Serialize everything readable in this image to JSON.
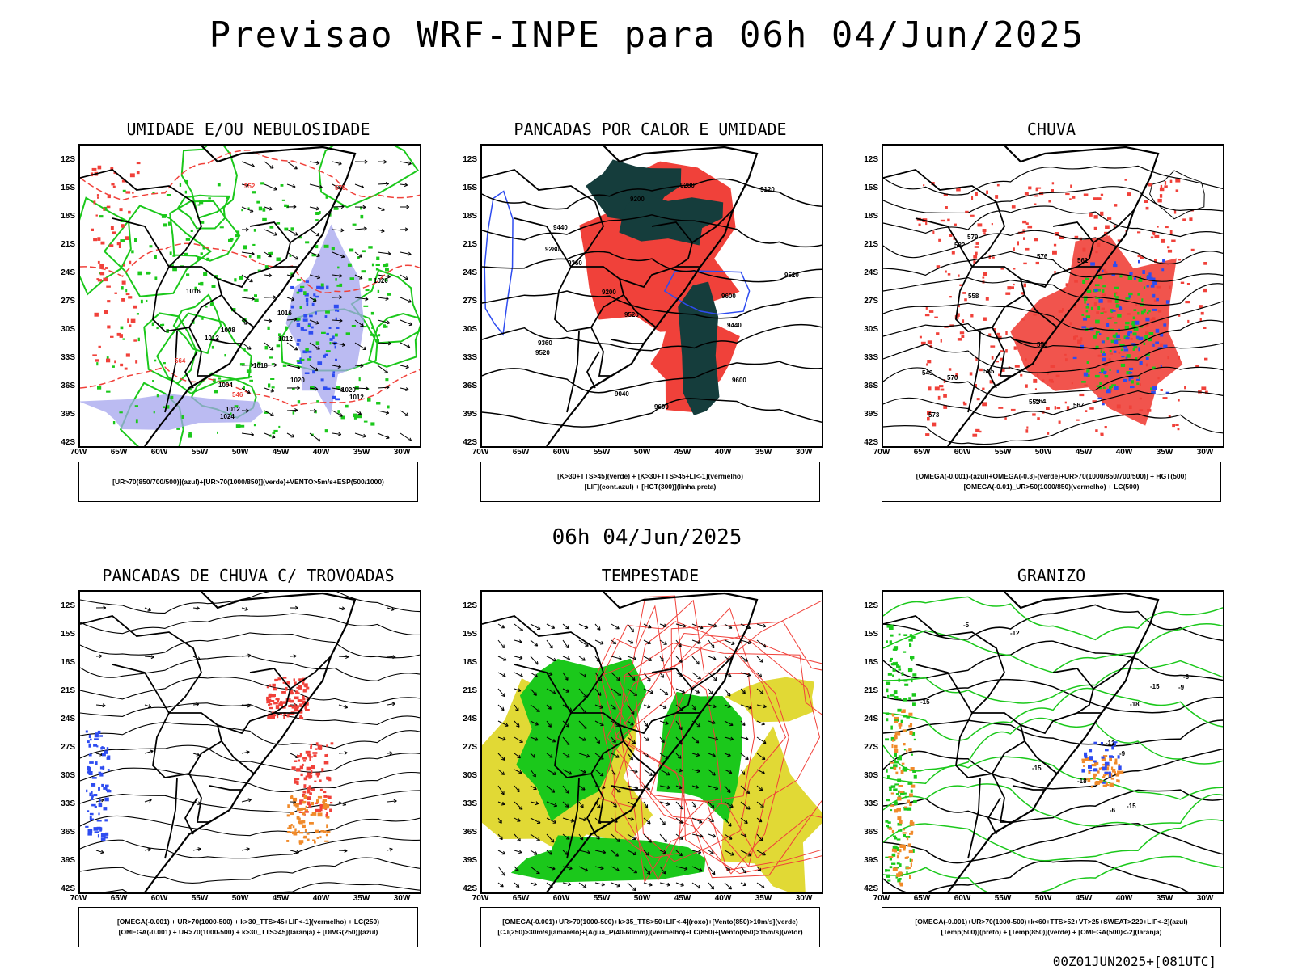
{
  "title": "Previsao WRF-INPE  para 06h 04/Jun/2025",
  "mid_time": "06h 04/Jun/2025",
  "footer": "00Z01JUN2025+[081UTC]",
  "y_ticks": [
    "12S",
    "15S",
    "18S",
    "21S",
    "24S",
    "27S",
    "30S",
    "33S",
    "36S",
    "39S",
    "42S"
  ],
  "x_ticks": [
    "70W",
    "65W",
    "60W",
    "55W",
    "50W",
    "45W",
    "40W",
    "35W",
    "30W"
  ],
  "colors": {
    "red": "#f0413a",
    "green": "#1bc81b",
    "blue": "#2e4cf0",
    "lavender": "#a4a4ee",
    "dark": "#153d3c",
    "yellow": "#e1d935",
    "orange": "#f08a2a"
  },
  "panels": [
    {
      "key": "umidade",
      "title": "UMIDADE E/OU NEBULOSIDADE",
      "legend": [
        "[UR>70(850/700/500)](azul)+[UR>70(1000/850)](verde)+VENTO>5m/s+ESP(500/1000)"
      ],
      "labels": [
        "1012",
        "1012",
        "1020",
        "1020",
        "1016",
        "1018",
        "1012",
        "1008",
        "1024",
        "1016",
        "1020",
        "1012",
        "1004",
        "570",
        "564",
        "552",
        "546"
      ]
    },
    {
      "key": "pancadas_calor",
      "title": "PANCADAS POR CALOR E UMIDADE",
      "legend": [
        "[K>30+TTS>45](verde) + [K>30+TTS>45+LI<-1](vermelho)",
        "[LIF](cont.azul) + [HGT(300)](linha preta)"
      ],
      "labels": [
        "9600",
        "9600",
        "9600",
        "9520",
        "9520",
        "9520",
        "9440",
        "9440",
        "9360",
        "9360",
        "9280",
        "9280",
        "9200",
        "9200",
        "9120",
        "9040"
      ]
    },
    {
      "key": "chuva",
      "title": "CHUVA",
      "legend": [
        "[OMEGA(-0.001)-(azul)+OMEGA(-0.3)-(verde)+UR>70(1000/850/700/500)] + HGT(500)",
        "[OMEGA(-0.01)_UR>50(1000/850)(vermelho) + LC(500)"
      ],
      "labels": [
        "585",
        "582",
        "579",
        "576",
        "573",
        "570",
        "567",
        "564",
        "561",
        "558",
        "555",
        "552",
        "549"
      ]
    },
    {
      "key": "trovoadas",
      "title": "PANCADAS DE CHUVA C/ TROVOADAS",
      "legend": [
        "[OMEGA(-0.001) + UR>70(1000-500) + k>30_TTS>45+LIF<-1](vermelho) + LC(250)",
        "[OMEGA(-0.001) + UR>70(1000-500) + k>30_TTS>45](laranja) + [DIVG(250)](azul)"
      ],
      "labels": []
    },
    {
      "key": "tempestade",
      "title": "TEMPESTADE",
      "legend": [
        "[OMEGA(-0.001)+UR>70(1000-500)+k>35_TTS>50+LIF<-4](roxo)+[Vento(850)>10m/s](verde)",
        "[CJ(250)>30m/s](amarelo)+[Agua_P(40-60mm)](vermelho)+LC(850)+[Vento(850)>15m/s](vetor)"
      ],
      "labels": []
    },
    {
      "key": "granizo",
      "title": "GRANIZO",
      "legend": [
        "[OMEGA(-0.001)+UR>70(1000-500)+k<60+TTS>52+VT>25+SWEAT>220+LIF<-2](azul)",
        "[Temp(500)](preto) + [Temp(850)](verde) + [OMEGA(500)<-2](laranja)"
      ],
      "labels": [
        "-5",
        "-6",
        "-9",
        "-12",
        "-15",
        "-18",
        "-15",
        "-12",
        "-9",
        "-6",
        "-15",
        "-18",
        "-15"
      ]
    }
  ]
}
